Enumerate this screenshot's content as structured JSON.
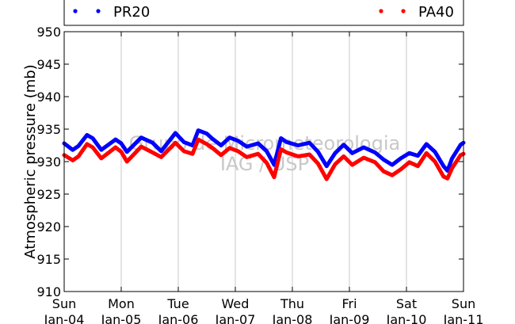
{
  "chart_data": {
    "type": "line",
    "ylabel": "Atmospheric pressure (mb)",
    "ylim": [
      910,
      950
    ],
    "yticks": [
      910,
      915,
      920,
      925,
      930,
      935,
      940,
      945,
      950
    ],
    "xlim": [
      0,
      7
    ],
    "x_ticks": [
      {
        "day": "Sun",
        "date": "Jan-04"
      },
      {
        "day": "Mon",
        "date": "Jan-05"
      },
      {
        "day": "Tue",
        "date": "Jan-06"
      },
      {
        "day": "Wed",
        "date": "Jan-07"
      },
      {
        "day": "Thu",
        "date": "Jan-08"
      },
      {
        "day": "Fri",
        "date": "Jan-09"
      },
      {
        "day": "Sat",
        "date": "Jan-10"
      },
      {
        "day": "Sun",
        "date": "Jan-11"
      }
    ],
    "grid": "vertical",
    "legend_position": "top",
    "watermark": [
      "Grupo de Micrometeorologia",
      "IAG / USP"
    ],
    "series": [
      {
        "name": "PR20",
        "color": "#0000ff",
        "points": [
          [
            0.0,
            932.8
          ],
          [
            0.15,
            931.8
          ],
          [
            0.25,
            932.4
          ],
          [
            0.4,
            934.1
          ],
          [
            0.5,
            933.6
          ],
          [
            0.65,
            931.8
          ],
          [
            0.9,
            933.4
          ],
          [
            1.0,
            932.8
          ],
          [
            1.1,
            931.5
          ],
          [
            1.35,
            933.7
          ],
          [
            1.55,
            932.9
          ],
          [
            1.7,
            931.6
          ],
          [
            1.95,
            934.4
          ],
          [
            2.1,
            933.0
          ],
          [
            2.25,
            932.5
          ],
          [
            2.35,
            934.8
          ],
          [
            2.5,
            934.3
          ],
          [
            2.6,
            933.5
          ],
          [
            2.75,
            932.5
          ],
          [
            2.9,
            933.7
          ],
          [
            3.05,
            933.2
          ],
          [
            3.2,
            932.3
          ],
          [
            3.4,
            932.8
          ],
          [
            3.55,
            931.6
          ],
          [
            3.68,
            929.5
          ],
          [
            3.8,
            933.6
          ],
          [
            3.9,
            933.0
          ],
          [
            4.1,
            932.5
          ],
          [
            4.3,
            932.9
          ],
          [
            4.45,
            931.5
          ],
          [
            4.6,
            929.3
          ],
          [
            4.75,
            931.3
          ],
          [
            4.9,
            932.6
          ],
          [
            5.05,
            931.3
          ],
          [
            5.25,
            932.2
          ],
          [
            5.45,
            931.4
          ],
          [
            5.6,
            930.3
          ],
          [
            5.75,
            929.5
          ],
          [
            5.9,
            930.5
          ],
          [
            6.05,
            931.3
          ],
          [
            6.2,
            930.9
          ],
          [
            6.35,
            932.7
          ],
          [
            6.5,
            931.5
          ],
          [
            6.65,
            929.3
          ],
          [
            6.72,
            928.6
          ],
          [
            6.8,
            930.5
          ],
          [
            6.95,
            932.6
          ],
          [
            7.0,
            932.9
          ]
        ]
      },
      {
        "name": "PA40",
        "color": "#ff0000",
        "points": [
          [
            0.0,
            931.0
          ],
          [
            0.15,
            930.2
          ],
          [
            0.25,
            930.8
          ],
          [
            0.4,
            932.7
          ],
          [
            0.5,
            932.2
          ],
          [
            0.65,
            930.5
          ],
          [
            0.9,
            932.2
          ],
          [
            1.0,
            931.5
          ],
          [
            1.1,
            930.0
          ],
          [
            1.35,
            932.3
          ],
          [
            1.55,
            931.4
          ],
          [
            1.7,
            930.7
          ],
          [
            1.95,
            932.9
          ],
          [
            2.1,
            931.6
          ],
          [
            2.25,
            931.2
          ],
          [
            2.35,
            933.4
          ],
          [
            2.5,
            932.7
          ],
          [
            2.6,
            932.1
          ],
          [
            2.75,
            931.0
          ],
          [
            2.9,
            932.1
          ],
          [
            3.05,
            931.6
          ],
          [
            3.2,
            930.7
          ],
          [
            3.4,
            931.2
          ],
          [
            3.55,
            929.8
          ],
          [
            3.68,
            927.6
          ],
          [
            3.8,
            931.9
          ],
          [
            3.9,
            931.4
          ],
          [
            4.1,
            930.8
          ],
          [
            4.3,
            931.1
          ],
          [
            4.45,
            929.7
          ],
          [
            4.6,
            927.3
          ],
          [
            4.75,
            929.6
          ],
          [
            4.9,
            930.8
          ],
          [
            5.05,
            929.5
          ],
          [
            5.25,
            930.6
          ],
          [
            5.45,
            929.9
          ],
          [
            5.6,
            928.5
          ],
          [
            5.75,
            927.9
          ],
          [
            5.9,
            928.8
          ],
          [
            6.05,
            929.9
          ],
          [
            6.2,
            929.3
          ],
          [
            6.35,
            931.3
          ],
          [
            6.5,
            930.0
          ],
          [
            6.65,
            927.7
          ],
          [
            6.72,
            927.4
          ],
          [
            6.8,
            929.0
          ],
          [
            6.95,
            931.0
          ],
          [
            7.0,
            931.2
          ]
        ]
      }
    ]
  }
}
